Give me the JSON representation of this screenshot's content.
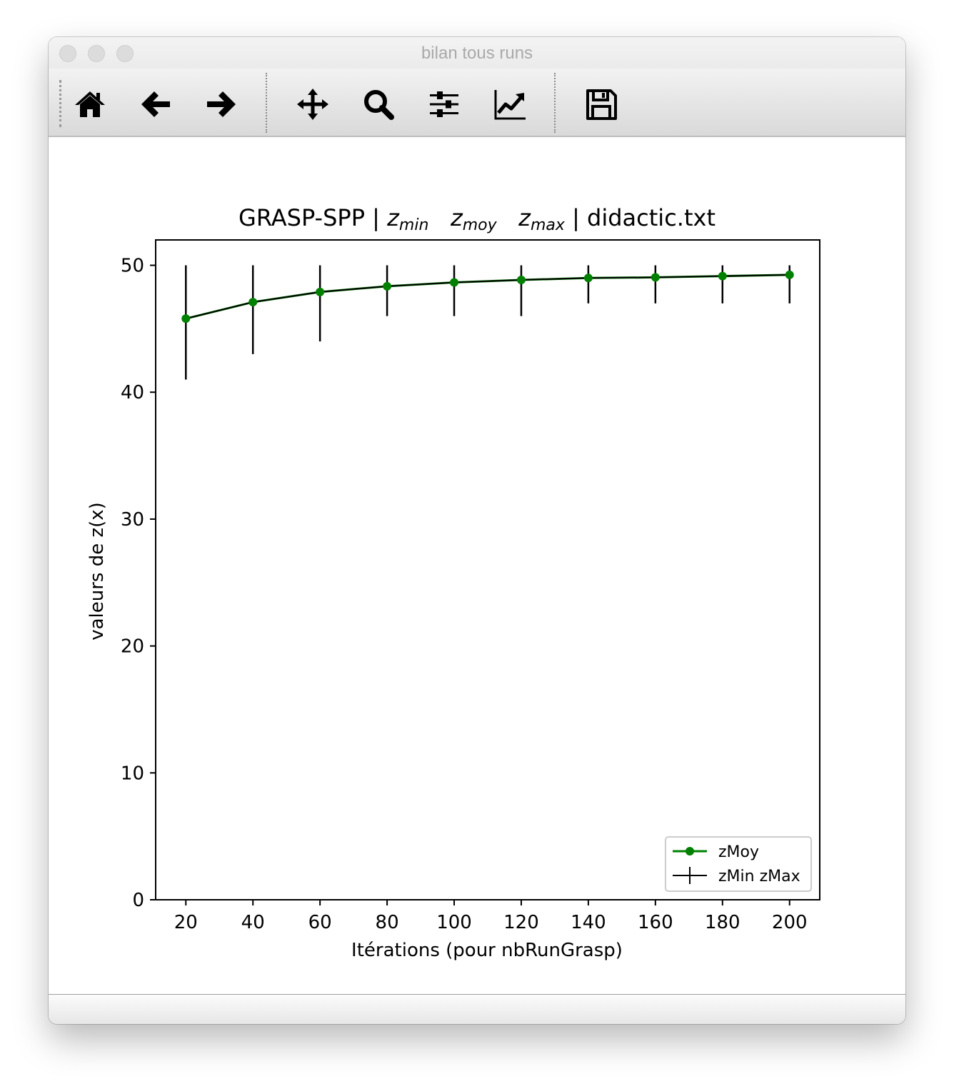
{
  "window": {
    "title": "bilan tous runs"
  },
  "toolbar": {
    "tools": [
      {
        "name": "home-icon"
      },
      {
        "name": "back-arrow-icon"
      },
      {
        "name": "forward-arrow-icon"
      },
      {
        "name": "pan-move-icon"
      },
      {
        "name": "zoom-magnifier-icon"
      },
      {
        "name": "subplots-sliders-icon"
      },
      {
        "name": "edit-axis-curve-icon"
      },
      {
        "name": "save-floppy-icon"
      }
    ]
  },
  "chart": {
    "title_prefix": "GRASP-SPP | ",
    "title_z1": "z",
    "title_z1_sub": "min",
    "title_z2": "z",
    "title_z2_sub": "moy",
    "title_z3": "z",
    "title_z3_sub": "max",
    "title_suffix": " | didactic.txt",
    "xlabel": "Itérations (pour nbRunGrasp)",
    "ylabel": "valeurs de z(x)"
  },
  "chart_data": {
    "type": "line",
    "x": [
      20,
      40,
      60,
      80,
      100,
      120,
      140,
      160,
      180,
      200
    ],
    "series": [
      {
        "name": "zMoy",
        "color": "#008000",
        "marker": "circle",
        "values": [
          45.8,
          47.1,
          47.9,
          48.35,
          48.65,
          48.85,
          49.0,
          49.05,
          49.15,
          49.25
        ]
      },
      {
        "name": "zMin zMax",
        "color": "#000000",
        "type": "errorbar",
        "min": [
          41,
          43,
          44,
          46,
          46,
          46,
          47,
          47,
          47,
          47
        ],
        "max": [
          50,
          50,
          50,
          50,
          50,
          50,
          50,
          50,
          50,
          50
        ]
      }
    ],
    "xticks": [
      20,
      40,
      60,
      80,
      100,
      120,
      140,
      160,
      180,
      200
    ],
    "yticks": [
      0,
      10,
      20,
      30,
      40,
      50
    ],
    "xlim": [
      11,
      209
    ],
    "ylim": [
      0,
      52
    ],
    "legend_position": "bottom-right",
    "grid": false
  }
}
